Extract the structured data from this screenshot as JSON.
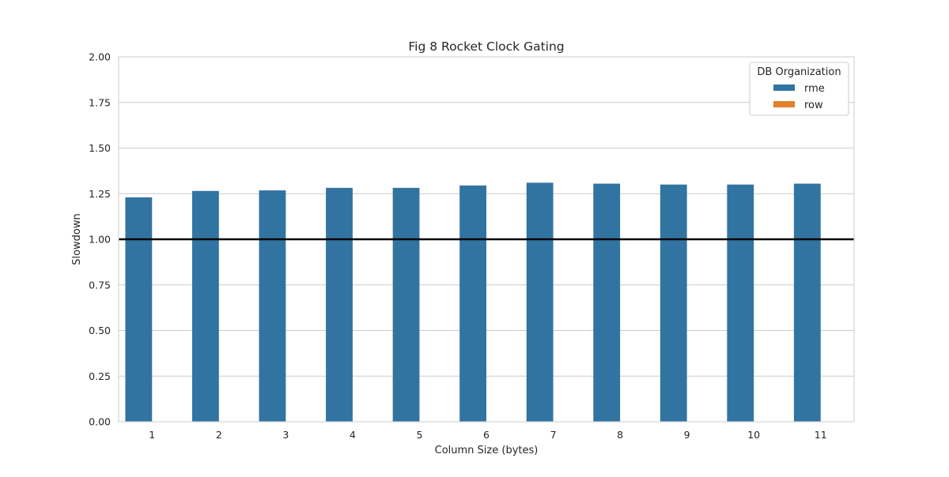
{
  "chart_data": {
    "type": "bar",
    "title": "Fig 8 Rocket Clock Gating",
    "xlabel": "Column Size (bytes)",
    "ylabel": "Slowdown",
    "categories": [
      "1",
      "2",
      "3",
      "4",
      "5",
      "6",
      "7",
      "8",
      "9",
      "10",
      "11"
    ],
    "series": [
      {
        "name": "rme",
        "color": "#3274a1",
        "values": [
          1.23,
          1.265,
          1.268,
          1.282,
          1.282,
          1.295,
          1.31,
          1.305,
          1.3,
          1.3,
          1.305
        ]
      },
      {
        "name": "row",
        "color": "#e1812c",
        "values": [
          0,
          0,
          0,
          0,
          0,
          0,
          0,
          0,
          0,
          0,
          0
        ]
      }
    ],
    "ylim": [
      0,
      2.0
    ],
    "yticks": [
      "0.00",
      "0.25",
      "0.50",
      "0.75",
      "1.00",
      "1.25",
      "1.50",
      "1.75",
      "2.00"
    ],
    "reference_line": {
      "y": 1.0,
      "color": "#000000"
    },
    "grid": true,
    "legend": {
      "title": "DB Organization",
      "position": "top-right"
    }
  }
}
